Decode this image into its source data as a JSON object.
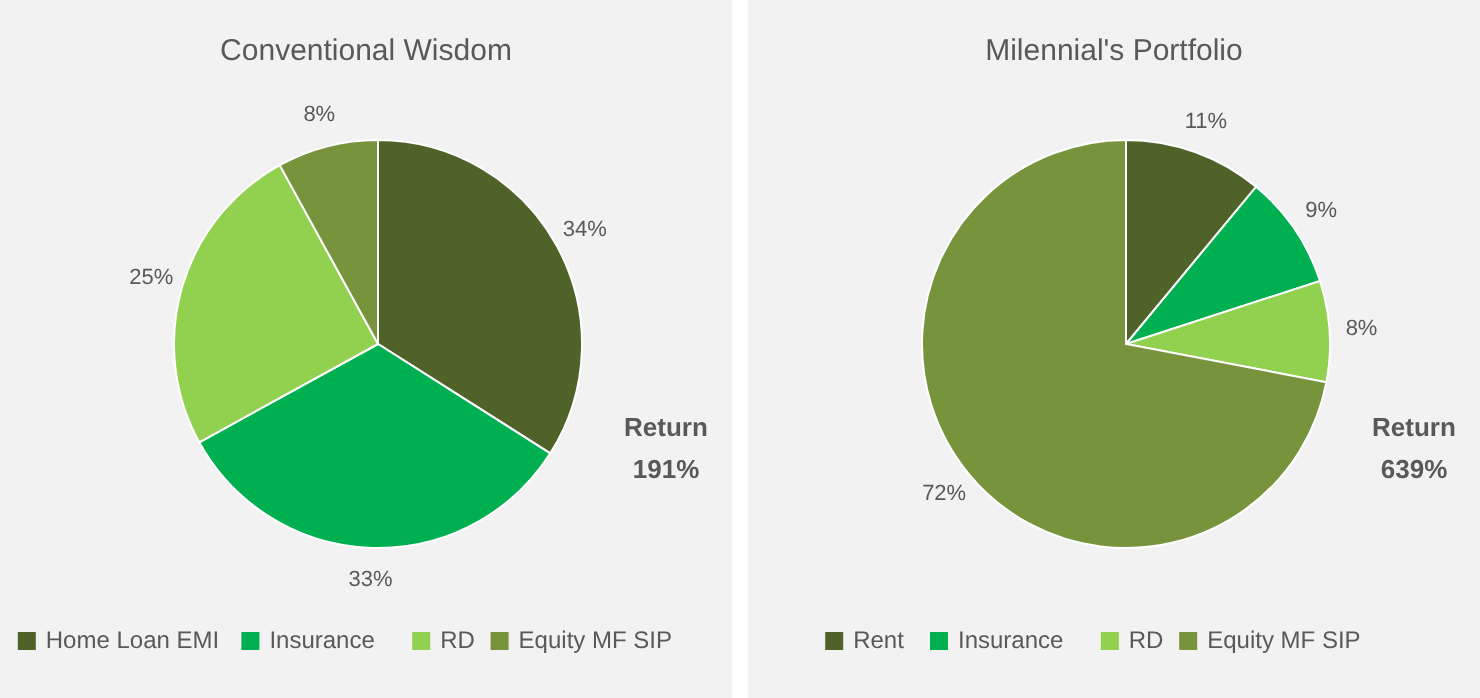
{
  "chart_data": [
    {
      "type": "pie",
      "title": "Conventional Wisdom",
      "categories": [
        "Home Loan EMI",
        "Insurance",
        "RD",
        "Equity MF SIP"
      ],
      "values": [
        34,
        33,
        25,
        8
      ],
      "colors": [
        "#4f6228",
        "#00b050",
        "#92d050",
        "#77933c"
      ],
      "value_labels": [
        "34%",
        "33%",
        "25%",
        "8%"
      ],
      "legend": "bottom",
      "annotations": [
        "Return 191%"
      ]
    },
    {
      "type": "pie",
      "title": "Milennial's Portfolio",
      "categories": [
        "Rent",
        "Insurance",
        "RD",
        "Equity MF SIP"
      ],
      "values": [
        11,
        9,
        8,
        72
      ],
      "colors": [
        "#4f6228",
        "#00b050",
        "#92d050",
        "#77933c"
      ],
      "value_labels": [
        "11%",
        "9%",
        "8%",
        "72%"
      ],
      "legend": "bottom",
      "annotations": [
        "Return 639%"
      ]
    }
  ]
}
